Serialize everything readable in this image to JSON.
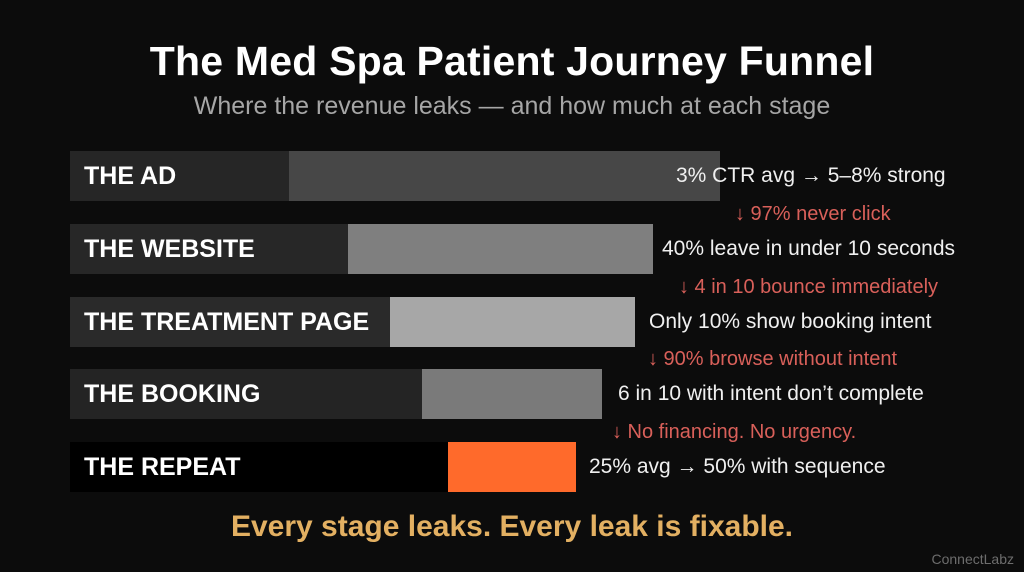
{
  "title": "The Med Spa Patient Journey Funnel",
  "subtitle": "Where the revenue leaks — and how much at each stage",
  "colors": {
    "leak_text": "#d9605a",
    "footer_text": "#e3b062",
    "highlight_bar": "#ff6a2b"
  },
  "stages": [
    {
      "label": "THE AD",
      "stat": "3% CTR avg → 5–8% strong",
      "leak": "↓ 97% never click"
    },
    {
      "label": "THE WEBSITE",
      "stat": "40% leave in under 10 seconds",
      "leak": "↓ 4 in 10 bounce immediately"
    },
    {
      "label": "THE TREATMENT PAGE",
      "stat": "Only 10% show booking intent",
      "leak": "↓ 90% browse without intent"
    },
    {
      "label": "THE BOOKING",
      "stat": "6 in 10 with intent don’t complete",
      "leak": "↓ No financing. No urgency."
    },
    {
      "label": "THE REPEAT",
      "stat": "25% avg → 50% with sequence"
    }
  ],
  "footer": "Every stage leaks. Every leak is fixable.",
  "watermark": "ConnectLabz"
}
